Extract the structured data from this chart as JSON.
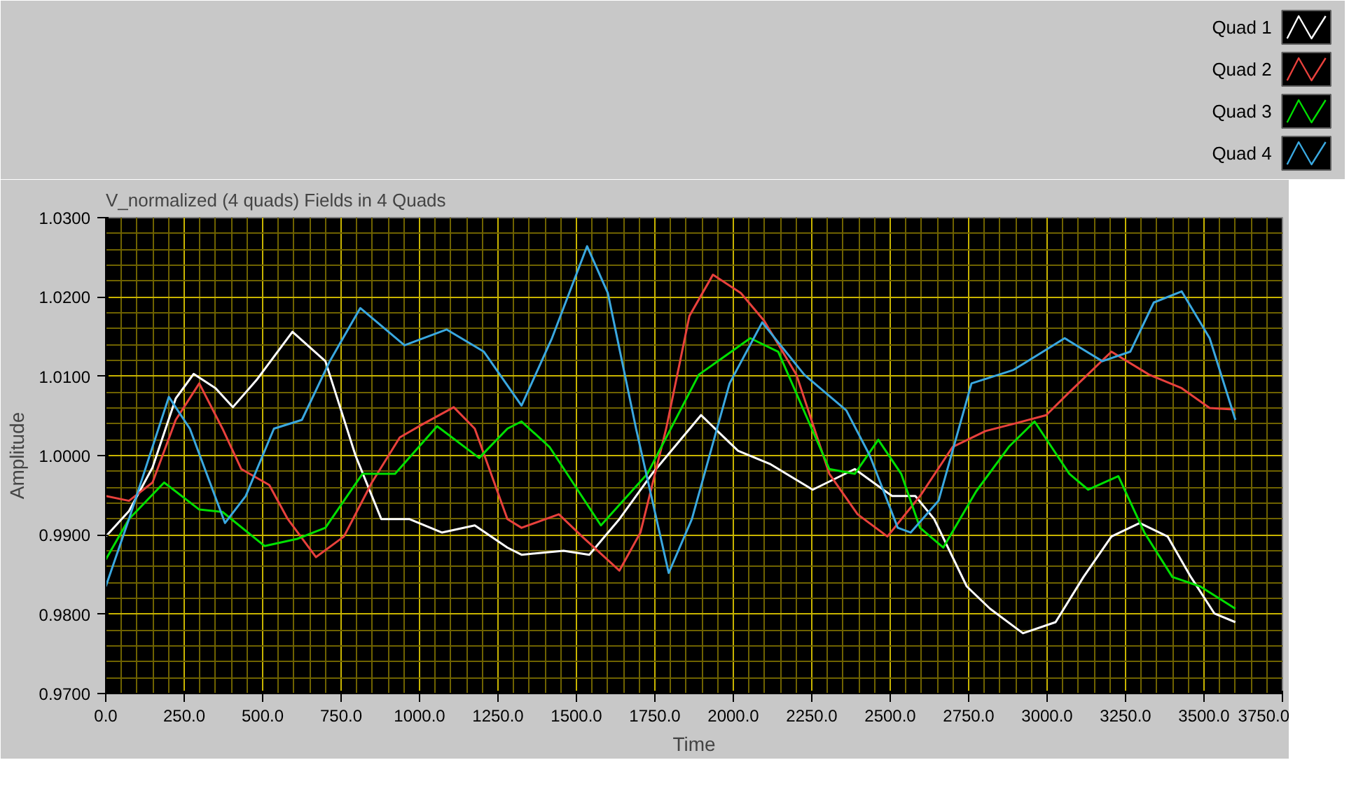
{
  "chart_data": {
    "type": "line",
    "title": "V_normalized (4 quads) Fields in 4 Quads",
    "xlabel": "Time",
    "ylabel": "Amplitude",
    "xlim": [
      0,
      3750
    ],
    "ylim": [
      0.97,
      1.03
    ],
    "xticks": [
      {
        "value": 0,
        "label": "0.0"
      },
      {
        "value": 50,
        "label": null
      },
      {
        "value": 100,
        "label": null
      },
      {
        "value": 150,
        "label": null
      },
      {
        "value": 200,
        "label": null
      },
      {
        "value": 250,
        "label": "250.0"
      },
      {
        "value": 300,
        "label": null
      },
      {
        "value": 350,
        "label": null
      },
      {
        "value": 400,
        "label": null
      },
      {
        "value": 450,
        "label": null
      },
      {
        "value": 550,
        "label": null
      },
      {
        "value": 600,
        "label": null
      },
      {
        "value": 650,
        "label": null
      },
      {
        "value": 700,
        "label": null
      },
      {
        "value": 800,
        "label": null
      },
      {
        "value": 850,
        "label": null
      },
      {
        "value": 900,
        "label": null
      },
      {
        "value": 950,
        "label": null
      },
      {
        "value": 1050,
        "label": null
      },
      {
        "value": 1100,
        "label": null
      },
      {
        "value": 1150,
        "label": null
      },
      {
        "value": 1200,
        "label": null
      },
      {
        "value": 1300,
        "label": null
      },
      {
        "value": 1350,
        "label": null
      },
      {
        "value": 1400,
        "label": null
      },
      {
        "value": 1450,
        "label": null
      },
      {
        "value": 1550,
        "label": null
      },
      {
        "value": 1600,
        "label": null
      },
      {
        "value": 1650,
        "label": null
      },
      {
        "value": 1700,
        "label": null
      },
      {
        "value": 1800,
        "label": null
      },
      {
        "value": 1850,
        "label": null
      },
      {
        "value": 1900,
        "label": null
      },
      {
        "value": 1950,
        "label": null
      },
      {
        "value": 2050,
        "label": null
      },
      {
        "value": 2100,
        "label": null
      },
      {
        "value": 2150,
        "label": null
      },
      {
        "value": 2200,
        "label": null
      },
      {
        "value": 2300,
        "label": null
      },
      {
        "value": 2350,
        "label": null
      },
      {
        "value": 2400,
        "label": null
      },
      {
        "value": 2450,
        "label": null
      },
      {
        "value": 2550,
        "label": null
      },
      {
        "value": 2600,
        "label": null
      },
      {
        "value": 2650,
        "label": null
      },
      {
        "value": 2700,
        "label": null
      },
      {
        "value": 2800,
        "label": null
      },
      {
        "value": 2850,
        "label": null
      },
      {
        "value": 2900,
        "label": null
      },
      {
        "value": 2950,
        "label": null
      },
      {
        "value": 3050,
        "label": null
      },
      {
        "value": 3100,
        "label": null
      },
      {
        "value": 3150,
        "label": null
      },
      {
        "value": 3200,
        "label": null
      },
      {
        "value": 3300,
        "label": null
      },
      {
        "value": 3350,
        "label": null
      },
      {
        "value": 3400,
        "label": null
      },
      {
        "value": 3450,
        "label": null
      },
      {
        "value": 3550,
        "label": null
      },
      {
        "value": 3600,
        "label": null
      },
      {
        "value": 3650,
        "label": null
      },
      {
        "value": 3700,
        "label": null
      },
      {
        "value": 500,
        "label": "500.0"
      },
      {
        "value": 750,
        "label": "750.0"
      },
      {
        "value": 1000,
        "label": "1000.0"
      },
      {
        "value": 1250,
        "label": "1250.0"
      },
      {
        "value": 1500,
        "label": "1500.0"
      },
      {
        "value": 1750,
        "label": "1750.0"
      },
      {
        "value": 2000,
        "label": "2000.0"
      },
      {
        "value": 2250,
        "label": "2250.0"
      },
      {
        "value": 2500,
        "label": "2500.0"
      },
      {
        "value": 2750,
        "label": "2750.0"
      },
      {
        "value": 3000,
        "label": "3000.0"
      },
      {
        "value": 3250,
        "label": "3250.0"
      },
      {
        "value": 3500,
        "label": "3500.0"
      },
      {
        "value": 3750,
        "label": "3750.0"
      }
    ],
    "yticks": [
      {
        "value": 0.97,
        "label": "0.9700"
      },
      {
        "value": 0.972,
        "label": null
      },
      {
        "value": 0.974,
        "label": null
      },
      {
        "value": 0.976,
        "label": null
      },
      {
        "value": 0.978,
        "label": null
      },
      {
        "value": 0.982,
        "label": null
      },
      {
        "value": 0.984,
        "label": null
      },
      {
        "value": 0.986,
        "label": null
      },
      {
        "value": 0.988,
        "label": null
      },
      {
        "value": 0.992,
        "label": null
      },
      {
        "value": 0.994,
        "label": null
      },
      {
        "value": 0.996,
        "label": null
      },
      {
        "value": 0.998,
        "label": null
      },
      {
        "value": 1.002,
        "label": null
      },
      {
        "value": 1.004,
        "label": null
      },
      {
        "value": 1.006,
        "label": null
      },
      {
        "value": 1.008,
        "label": null
      },
      {
        "value": 1.012,
        "label": null
      },
      {
        "value": 1.014,
        "label": null
      },
      {
        "value": 1.016,
        "label": null
      },
      {
        "value": 1.018,
        "label": null
      },
      {
        "value": 1.022,
        "label": null
      },
      {
        "value": 1.024,
        "label": null
      },
      {
        "value": 1.026,
        "label": null
      },
      {
        "value": 1.028,
        "label": null
      },
      {
        "value": 0.98,
        "label": "0.9800"
      },
      {
        "value": 0.99,
        "label": "0.9900"
      },
      {
        "value": 1.0,
        "label": "1.0000"
      },
      {
        "value": 1.01,
        "label": "1.0100"
      },
      {
        "value": 1.02,
        "label": "1.0200"
      },
      {
        "value": 1.03,
        "label": "1.0300"
      }
    ],
    "grid": true,
    "legend": "top right",
    "marker": "none",
    "line_style": "solid",
    "series": [
      {
        "name": "Quad 1",
        "color": "#ffffff",
        "x": [
          0,
          74,
          149,
          223,
          280,
          350,
          405,
          480,
          595,
          700,
          796,
          878,
          967,
          1071,
          1176,
          1280,
          1325,
          1459,
          1541,
          1637,
          1741,
          1897,
          2015,
          2119,
          2253,
          2387,
          2506,
          2580,
          2640,
          2744,
          2818,
          2923,
          3027,
          3116,
          3205,
          3295,
          3384,
          3458,
          3533,
          3600
        ],
        "values": [
          0.9898,
          0.993,
          0.9985,
          1.0072,
          1.0103,
          1.0085,
          1.0061,
          1.0095,
          1.0156,
          1.0119,
          1.0,
          0.992,
          0.992,
          0.9903,
          0.9912,
          0.9884,
          0.9875,
          0.988,
          0.9875,
          0.992,
          0.9977,
          1.0051,
          1.0006,
          0.9989,
          0.9957,
          0.9983,
          0.9949,
          0.9949,
          0.992,
          0.9835,
          0.9807,
          0.9776,
          0.979,
          0.9847,
          0.9898,
          0.9915,
          0.9898,
          0.9847,
          0.9801,
          0.979
        ]
      },
      {
        "name": "Quad 2",
        "color": "#e8413c",
        "x": [
          0,
          74,
          149,
          223,
          298,
          372,
          432,
          521,
          580,
          670,
          759,
          848,
          937,
          1012,
          1109,
          1176,
          1280,
          1325,
          1444,
          1518,
          1637,
          1704,
          1786,
          1860,
          1935,
          2024,
          2098,
          2201,
          2306,
          2396,
          2491,
          2595,
          2699,
          2804,
          2893,
          2997,
          3071,
          3205,
          3325,
          3429,
          3518,
          3600
        ],
        "values": [
          0.9949,
          0.9943,
          0.9966,
          1.0045,
          1.0091,
          1.0034,
          0.9983,
          0.9963,
          0.992,
          0.9872,
          0.9898,
          0.9966,
          1.0023,
          1.004,
          1.0061,
          1.0034,
          0.992,
          0.9909,
          0.9926,
          0.9898,
          0.9855,
          0.9903,
          1.0034,
          1.0176,
          1.0228,
          1.0205,
          1.017,
          1.0102,
          0.9977,
          0.9926,
          0.9898,
          0.9949,
          1.0011,
          1.0031,
          1.004,
          1.0051,
          1.008,
          1.0131,
          1.0102,
          1.0085,
          1.006,
          1.0058
        ]
      },
      {
        "name": "Quad 3",
        "color": "#00e000",
        "x": [
          0,
          74,
          186,
          298,
          372,
          506,
          610,
          700,
          818,
          922,
          1056,
          1190,
          1280,
          1325,
          1414,
          1578,
          1726,
          1890,
          2054,
          2143,
          2306,
          2387,
          2462,
          2535,
          2595,
          2669,
          2774,
          2878,
          2960,
          3071,
          3131,
          3227,
          3310,
          3399,
          3488,
          3600
        ],
        "values": [
          0.9869,
          0.992,
          0.9966,
          0.9932,
          0.9929,
          0.9886,
          0.9895,
          0.9909,
          0.9977,
          0.9977,
          1.0037,
          0.9997,
          1.0034,
          1.0043,
          1.0011,
          0.9912,
          0.9977,
          1.0102,
          1.0148,
          1.0131,
          0.9983,
          0.9977,
          1.002,
          0.9977,
          0.9909,
          0.9884,
          0.9955,
          1.0011,
          1.0043,
          0.9977,
          0.9957,
          0.9974,
          0.9903,
          0.9847,
          0.9835,
          0.9807
        ]
      },
      {
        "name": "Quad 4",
        "color": "#3aa8e0",
        "x": [
          0,
          74,
          201,
          268,
          380,
          446,
          536,
          625,
          714,
          811,
          952,
          1086,
          1205,
          1325,
          1422,
          1534,
          1600,
          1690,
          1794,
          1868,
          1988,
          2092,
          2226,
          2360,
          2435,
          2524,
          2565,
          2654,
          2759,
          2893,
          3056,
          3176,
          3265,
          3340,
          3429,
          3518,
          3600
        ],
        "values": [
          0.9835,
          0.992,
          1.0074,
          1.0034,
          0.9915,
          0.9949,
          1.0034,
          1.0045,
          1.0119,
          1.0186,
          1.0139,
          1.0159,
          1.0131,
          1.0063,
          1.0148,
          1.0264,
          1.0205,
          1.0034,
          0.9852,
          0.992,
          1.0091,
          1.0168,
          1.0102,
          1.0057,
          1.0,
          0.9909,
          0.9903,
          0.9943,
          1.0091,
          1.0108,
          1.0148,
          1.0119,
          1.0131,
          1.0193,
          1.0207,
          1.0148,
          1.0045
        ]
      }
    ]
  }
}
